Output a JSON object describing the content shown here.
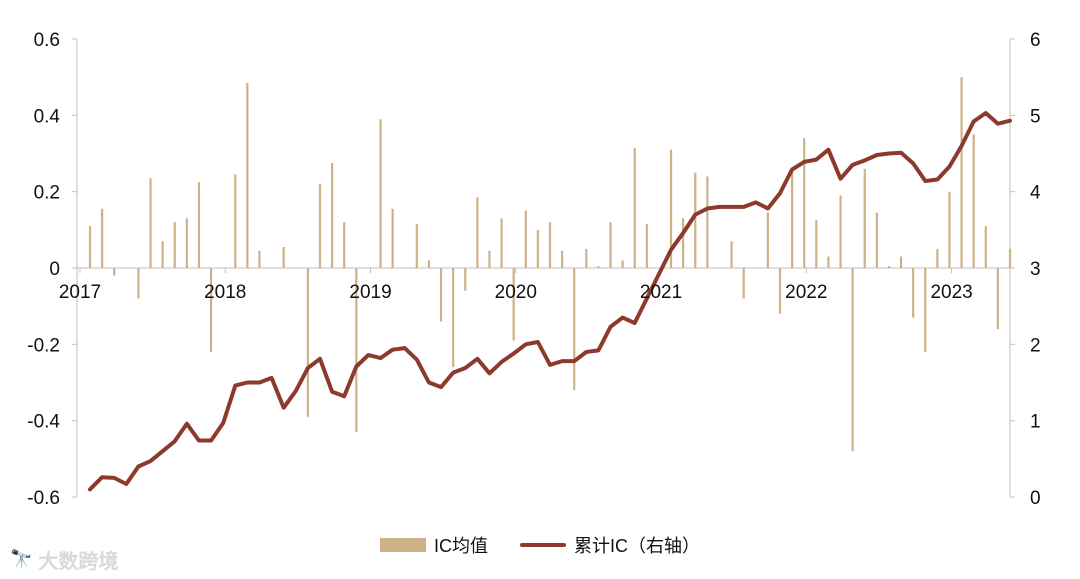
{
  "chart_data": {
    "type": "bar+line",
    "x_labels": [
      "2017",
      "2018",
      "2019",
      "2020",
      "2021",
      "2022",
      "2023"
    ],
    "left_axis": {
      "ticks": [
        "0.6",
        "0.4",
        "0.2",
        "0",
        "-0.2",
        "-0.4",
        "-0.6"
      ],
      "range": [
        -0.6,
        0.6
      ]
    },
    "right_axis": {
      "ticks": [
        "6",
        "5",
        "4",
        "3",
        "2",
        "1",
        "0"
      ],
      "range": [
        0,
        6
      ]
    },
    "series": [
      {
        "name": "IC均值",
        "kind": "bar",
        "axis": "left",
        "color": "#CDB287",
        "values": [
          0.11,
          0.155,
          -0.02,
          0.0,
          -0.08,
          0.235,
          0.07,
          0.12,
          0.13,
          0.225,
          -0.22,
          0.0,
          0.245,
          0.485,
          0.045,
          0.0,
          0.055,
          0.0,
          -0.39,
          0.22,
          0.275,
          0.12,
          -0.43,
          0.0,
          0.39,
          0.155,
          0.0,
          0.115,
          0.02,
          -0.14,
          -0.26,
          -0.06,
          0.185,
          0.045,
          0.13,
          -0.19,
          0.15,
          0.1,
          0.12,
          0.045,
          -0.32,
          0.05,
          0.005,
          0.12,
          0.02,
          0.315,
          0.115,
          0.0,
          0.31,
          0.13,
          0.25,
          0.24,
          0.0,
          0.07,
          -0.08,
          0.0,
          0.145,
          -0.12,
          0.25,
          0.34,
          0.125,
          0.03,
          0.19,
          -0.48,
          0.26,
          0.145,
          0.005,
          0.03,
          -0.13,
          -0.22,
          0.05,
          0.2,
          0.5,
          0.35,
          0.11,
          -0.16,
          0.05
        ]
      },
      {
        "name": "累计IC（右轴）",
        "kind": "line",
        "axis": "right",
        "color": "#8B3A2B",
        "values": [
          0.1,
          0.26,
          0.25,
          0.17,
          0.4,
          0.47,
          0.6,
          0.73,
          0.96,
          0.74,
          0.74,
          0.97,
          1.46,
          1.5,
          1.5,
          1.56,
          1.17,
          1.39,
          1.69,
          1.81,
          1.38,
          1.32,
          1.71,
          1.86,
          1.82,
          1.93,
          1.95,
          1.8,
          1.5,
          1.44,
          1.63,
          1.69,
          1.81,
          1.62,
          1.77,
          1.88,
          2.0,
          2.03,
          1.73,
          1.78,
          1.78,
          1.9,
          1.92,
          2.23,
          2.35,
          2.28,
          2.6,
          2.92,
          3.24,
          3.46,
          3.7,
          3.78,
          3.8,
          3.8,
          3.8,
          3.86,
          3.78,
          3.98,
          4.29,
          4.39,
          4.42,
          4.55,
          4.17,
          4.35,
          4.41,
          4.48,
          4.5,
          4.51,
          4.37,
          4.14,
          4.16,
          4.33,
          4.6,
          4.92,
          5.03,
          4.89,
          4.93
        ]
      }
    ],
    "grid": false,
    "legend_position": "bottom-center"
  },
  "watermark": {
    "logo": "🔭",
    "text": "大数跨境"
  }
}
